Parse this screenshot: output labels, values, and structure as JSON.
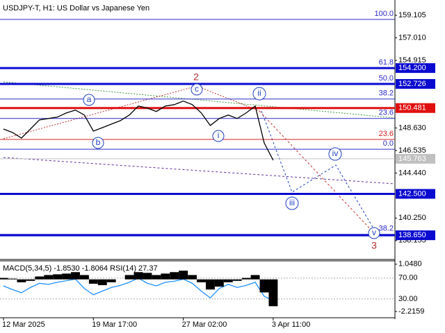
{
  "chart_data": [
    {
      "type": "line",
      "title": "USDJPY-T, H1:  US Dollar vs Japanese Yen",
      "categories": [
        "12 Mar 2025",
        null,
        null,
        null,
        null,
        null,
        null,
        null,
        null,
        null,
        "19 Mar 17:00",
        null,
        null,
        null,
        null,
        null,
        null,
        null,
        null,
        null,
        "27 Mar 02:00",
        null,
        null,
        null,
        null,
        null,
        null,
        null,
        null,
        null,
        "3 Apr 11:00"
      ],
      "values": [
        148.53,
        148.21,
        147.69,
        148.53,
        149.38,
        149.51,
        149.64,
        150.03,
        150.29,
        149.83,
        148.34,
        148.66,
        148.99,
        149.31,
        149.83,
        150.67,
        150.48,
        150.16,
        150.67,
        150.8,
        151.13,
        150.8,
        150.03,
        148.86,
        149.51,
        149.83,
        149.51,
        150.03,
        150.67,
        147.24,
        145.63
      ],
      "color": "#000000",
      "ylim": [
        136.53,
        160.53
      ],
      "yticks": [
        159.105,
        {
          "value": 157.01,
          "label": "157.010"
        },
        154.915,
        {
          "value": 148.63,
          "label": "148.630"
        },
        146.535,
        {
          "value": 144.44,
          "label": "144.440"
        },
        {
          "value": 140.25,
          "label": "140.250"
        },
        138.155
      ],
      "grid": false,
      "levels": [
        {
          "value": 154.2,
          "label": "154.200",
          "color": "#0a0ad0"
        },
        {
          "value": 152.726,
          "label": "152.726",
          "color": "#0a0ad0"
        },
        {
          "value": 150.481,
          "label": "150.481",
          "color": "#e01010"
        },
        {
          "value": 142.5,
          "label": "142.500",
          "color": "#0a0ad0"
        },
        {
          "value": 138.65,
          "label": "138.650",
          "color": "#0a0ad0"
        }
      ],
      "current_price": 145.763,
      "fib_levels": [
        {
          "label": "100.0",
          "price": 158.72,
          "color": "#2a2ac8"
        },
        {
          "label": "61.8",
          "price": 154.2,
          "color": "#2a2ac8"
        },
        {
          "label": "50.0",
          "price": 152.726,
          "color": "#2a2ac8"
        },
        {
          "label": "38.2",
          "price": 151.32,
          "color": "#2a2ac8"
        },
        {
          "label": "23.6",
          "price": 149.51,
          "color": "#2a2ac8"
        },
        {
          "label": "23.6",
          "price": 147.56,
          "color": "#d02020"
        },
        {
          "label": "0.0",
          "price": 146.65,
          "color": "#2a2ac8"
        },
        {
          "label": "38.2",
          "price": 138.74,
          "color": "#2a2ac8"
        }
      ],
      "waves": [
        "a",
        "b",
        "c",
        "2",
        "i",
        "ii",
        "iii",
        "iv",
        "v",
        "3"
      ]
    },
    {
      "type": "line",
      "indicator_label": "MACD(5,34,5) -1.8530 -1.8064 RSI(14) 27.37",
      "ylim": [
        -6,
        103
      ],
      "yticks": [
        {
          "value": 70,
          "label": "70.00"
        },
        {
          "value": 30,
          "label": "30.00"
        }
      ],
      "y2lim": [
        -2.65,
        1.28
      ],
      "y2ticks": [
        {
          "value": 1.048,
          "label": "1.0480"
        },
        -2.2159
      ],
      "series": [
        {
          "color": "#1e90ff",
          "values": [
            55,
            48,
            42,
            52,
            60,
            58,
            62,
            65,
            68,
            50,
            38,
            45,
            52,
            56,
            62,
            70,
            60,
            55,
            62,
            64,
            68,
            60,
            45,
            32,
            50,
            58,
            52,
            56,
            62,
            35,
            27.37
          ]
        },
        {
          "color": "#000000",
          "axis": "y2",
          "values": [
            0.1,
            0.05,
            -0.2,
            -0.1,
            0.2,
            0.3,
            0.35,
            0.4,
            0.5,
            0.3,
            -0.3,
            -0.4,
            -0.2,
            0.0,
            0.3,
            0.5,
            0.45,
            0.3,
            0.4,
            0.5,
            0.6,
            0.3,
            -0.2,
            -0.7,
            -0.5,
            -0.2,
            -0.1,
            0.1,
            0.3,
            -0.9,
            -1.853
          ]
        }
      ]
    }
  ]
}
